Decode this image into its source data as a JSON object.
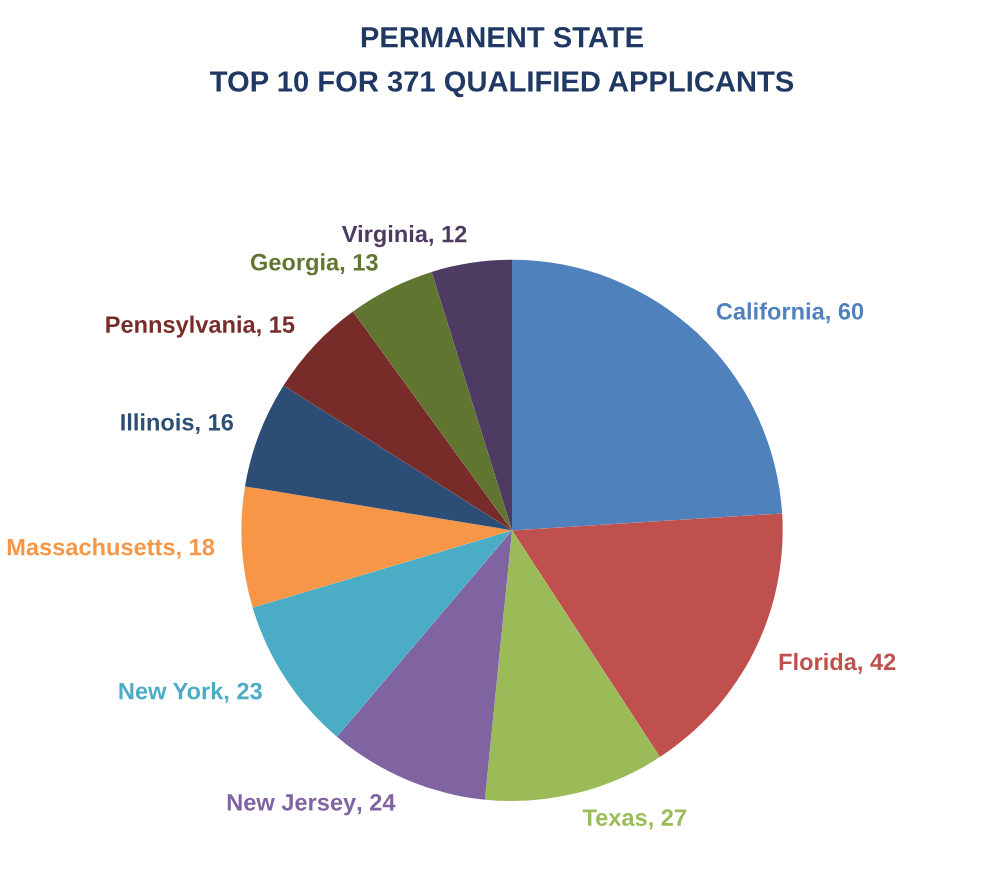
{
  "chart_data": {
    "type": "pie",
    "title": "PERMANENT STATE",
    "subtitle": "TOP 10 FOR 371 QUALIFIED APPLICANTS",
    "categories": [
      "California",
      "Florida",
      "Texas",
      "New Jersey",
      "New York",
      "Massachusetts",
      "Illinois",
      "Pennsylvania",
      "Georgia",
      "Virginia"
    ],
    "values": [
      60,
      42,
      27,
      24,
      23,
      18,
      16,
      15,
      13,
      12
    ],
    "colors": [
      "#4f81bd",
      "#c0504d",
      "#9bbb59",
      "#8064a2",
      "#4bacc6",
      "#f79646",
      "#2c4d75",
      "#772c2a",
      "#5f7530",
      "#4d3b62"
    ],
    "value_labels": [
      ", 60",
      ", 42",
      ", 27",
      ", 24",
      ", 23",
      ", 18",
      ", 16",
      ", 15",
      ", 13",
      ", 12"
    ],
    "legend": false
  }
}
